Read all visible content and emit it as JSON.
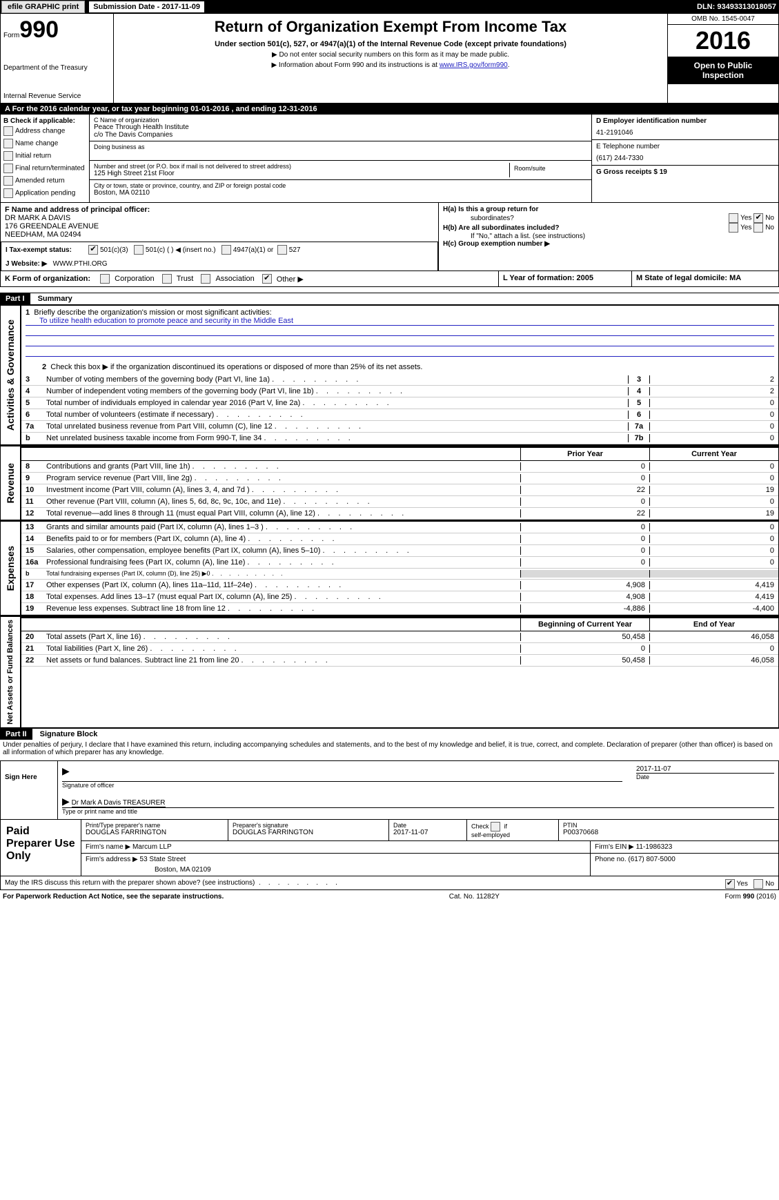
{
  "top": {
    "efile": "efile GRAPHIC print",
    "sub_date_label": "Submission Date - 2017-11-09",
    "dln": "DLN: 93493313018057"
  },
  "header": {
    "form_label": "Form",
    "form_num": "990",
    "dept1": "Department of the Treasury",
    "dept2": "Internal Revenue Service",
    "title": "Return of Organization Exempt From Income Tax",
    "sub": "Under section 501(c), 527, or 4947(a)(1) of the Internal Revenue Code (except private foundations)",
    "note1": "▶ Do not enter social security numbers on this form as it may be made public.",
    "note2_a": "▶ Information about Form 990 and its instructions is at ",
    "note2_link": "www.IRS.gov/form990",
    "omb": "OMB No. 1545-0047",
    "year": "2016",
    "open1": "Open to Public",
    "open2": "Inspection"
  },
  "a_bar": "A   For the 2016 calendar year, or tax year beginning 01-01-2016        , and ending 12-31-2016",
  "b": {
    "label": "B Check if applicable:",
    "items": [
      "Address change",
      "Name change",
      "Initial return",
      "Final return/terminated",
      "Amended return",
      "Application pending"
    ],
    "c_lbl": "C Name of organization",
    "c_name": "Peace Through Health Institute",
    "c_co": "c/o The Davis Companies",
    "dba_lbl": "Doing business as",
    "addr_lbl": "Number and street (or P.O. box if mail is not delivered to street address)",
    "room_lbl": "Room/suite",
    "addr": "125 High Street 21st Floor",
    "city_lbl": "City or town, state or province, country, and ZIP or foreign postal code",
    "city": "Boston, MA   02110",
    "d_lbl": "D Employer identification number",
    "d_val": "41-2191046",
    "e_lbl": "E Telephone number",
    "e_val": "(617) 244-7330",
    "g_lbl": "G Gross receipts $ 19"
  },
  "f": {
    "lbl": "F Name and address of principal officer:",
    "l1": "DR MARK A DAVIS",
    "l2": "176 GREENDALE AVENUE",
    "l3": "NEEDHAM, MA  02494"
  },
  "h": {
    "ha": "H(a)    Is this a group return for",
    "ha2": "subordinates?",
    "hb": "H(b)    Are all subordinates included?",
    "hb2": "If \"No,\" attach a list. (see instructions)",
    "hc": "H(c)    Group exemption number ▶",
    "yes": "Yes",
    "no": "No"
  },
  "i": {
    "lbl": "I     Tax-exempt status:",
    "o1": "501(c)(3)",
    "o2": "501(c) (  ) ◀ (insert no.)",
    "o3": "4947(a)(1) or",
    "o4": "527"
  },
  "j": {
    "lbl": "J   Website: ▶",
    "val": "WWW.PTHI.ORG"
  },
  "k": {
    "lbl": "K Form of organization:",
    "opts": [
      "Corporation",
      "Trust",
      "Association",
      "Other ▶"
    ],
    "l_lbl": "L Year of formation: 2005",
    "m_lbl": "M State of legal domicile: MA"
  },
  "part1": {
    "head": "Part I",
    "title": "Summary",
    "mission_lbl": "Briefly describe the organization's mission or most significant activities:",
    "mission": "To utilize health education to promote peace and security in the Middle East",
    "line2": "Check this box ▶         if the organization discontinued its operations or disposed of more than 25% of its net assets.",
    "lines": [
      {
        "n": "3",
        "t": "Number of voting members of the governing body (Part VI, line 1a)",
        "box": "3",
        "v": "2"
      },
      {
        "n": "4",
        "t": "Number of independent voting members of the governing body (Part VI, line 1b)",
        "box": "4",
        "v": "2"
      },
      {
        "n": "5",
        "t": "Total number of individuals employed in calendar year 2016 (Part V, line 2a)",
        "box": "5",
        "v": "0"
      },
      {
        "n": "6",
        "t": "Total number of volunteers (estimate if necessary)",
        "box": "6",
        "v": "0"
      },
      {
        "n": "7a",
        "t": "Total unrelated business revenue from Part VIII, column (C), line 12",
        "box": "7a",
        "v": "0"
      },
      {
        "n": "b",
        "t": "Net unrelated business taxable income from Form 990-T, line 34",
        "box": "7b",
        "v": "0"
      }
    ],
    "col_head": {
      "prior": "Prior Year",
      "curr": "Current Year"
    },
    "revenue": [
      {
        "n": "8",
        "t": "Contributions and grants (Part VIII, line 1h)",
        "p": "0",
        "c": "0"
      },
      {
        "n": "9",
        "t": "Program service revenue (Part VIII, line 2g)",
        "p": "0",
        "c": "0"
      },
      {
        "n": "10",
        "t": "Investment income (Part VIII, column (A), lines 3, 4, and 7d )",
        "p": "22",
        "c": "19"
      },
      {
        "n": "11",
        "t": "Other revenue (Part VIII, column (A), lines 5, 6d, 8c, 9c, 10c, and 11e)",
        "p": "0",
        "c": "0"
      },
      {
        "n": "12",
        "t": "Total revenue—add lines 8 through 11 (must equal Part VIII, column (A), line 12)",
        "p": "22",
        "c": "19"
      }
    ],
    "expenses": [
      {
        "n": "13",
        "t": "Grants and similar amounts paid (Part IX, column (A), lines 1–3 )",
        "p": "0",
        "c": "0"
      },
      {
        "n": "14",
        "t": "Benefits paid to or for members (Part IX, column (A), line 4)",
        "p": "0",
        "c": "0"
      },
      {
        "n": "15",
        "t": "Salaries, other compensation, employee benefits (Part IX, column (A), lines 5–10)",
        "p": "0",
        "c": "0"
      },
      {
        "n": "16a",
        "t": "Professional fundraising fees (Part IX, column (A), line 11e)",
        "p": "0",
        "c": "0"
      },
      {
        "n": "b",
        "t": "Total fundraising expenses (Part IX, column (D), line 25) ▶0",
        "p": "",
        "c": "",
        "shade": true,
        "small": true
      },
      {
        "n": "17",
        "t": "Other expenses (Part IX, column (A), lines 11a–11d, 11f–24e)",
        "p": "4,908",
        "c": "4,419"
      },
      {
        "n": "18",
        "t": "Total expenses. Add lines 13–17 (must equal Part IX, column (A), line 25)",
        "p": "4,908",
        "c": "4,419"
      },
      {
        "n": "19",
        "t": "Revenue less expenses. Subtract line 18 from line 12",
        "p": "-4,886",
        "c": "-4,400"
      }
    ],
    "na_head": {
      "beg": "Beginning of Current Year",
      "end": "End of Year"
    },
    "netassets": [
      {
        "n": "20",
        "t": "Total assets (Part X, line 16)",
        "p": "50,458",
        "c": "46,058"
      },
      {
        "n": "21",
        "t": "Total liabilities (Part X, line 26)",
        "p": "0",
        "c": "0"
      },
      {
        "n": "22",
        "t": "Net assets or fund balances. Subtract line 21 from line 20",
        "p": "50,458",
        "c": "46,058"
      }
    ],
    "side_labels": {
      "gov": "Activities & Governance",
      "rev": "Revenue",
      "exp": "Expenses",
      "na": "Net Assets or\nFund Balances"
    }
  },
  "part2": {
    "head": "Part II",
    "title": "Signature Block",
    "decl": "Under penalties of perjury, I declare that I have examined this return, including accompanying schedules and statements, and to the best of my knowledge and belief, it is true, correct, and complete. Declaration of preparer (other than officer) is based on all information of which preparer has any knowledge.",
    "sign_here": "Sign Here",
    "sig_officer": "Signature of officer",
    "sig_date": "2017-11-07",
    "date_lbl": "Date",
    "name": "Dr Mark A Davis  TREASURER",
    "name_lbl": "Type or print name and title"
  },
  "prep": {
    "left": "Paid Preparer Use Only",
    "h1": "Print/Type preparer's name",
    "v1": "DOUGLAS FARRINGTON",
    "h2": "Preparer's signature",
    "v2": "DOUGLAS FARRINGTON",
    "h3": "Date",
    "v3": "2017-11-07",
    "h4": "Check         if self-employed",
    "h5": "PTIN",
    "v5": "P00370668",
    "firm_name_lbl": "Firm's name      ▶",
    "firm_name": "Marcum LLP",
    "firm_addr_lbl": "Firm's address ▶",
    "firm_addr": "53 State Street",
    "firm_city": "Boston, MA  02109",
    "ein_lbl": "Firm's EIN ▶",
    "ein": "11-1986323",
    "phone_lbl": "Phone no.",
    "phone": "(617) 807-5000"
  },
  "discuss": {
    "q": "May the IRS discuss this return with the preparer shown above? (see instructions)",
    "yes": "Yes",
    "no": "No"
  },
  "footer": {
    "left": "For Paperwork Reduction Act Notice, see the separate instructions.",
    "mid": "Cat. No. 11282Y",
    "right": "Form 990 (2016)"
  }
}
